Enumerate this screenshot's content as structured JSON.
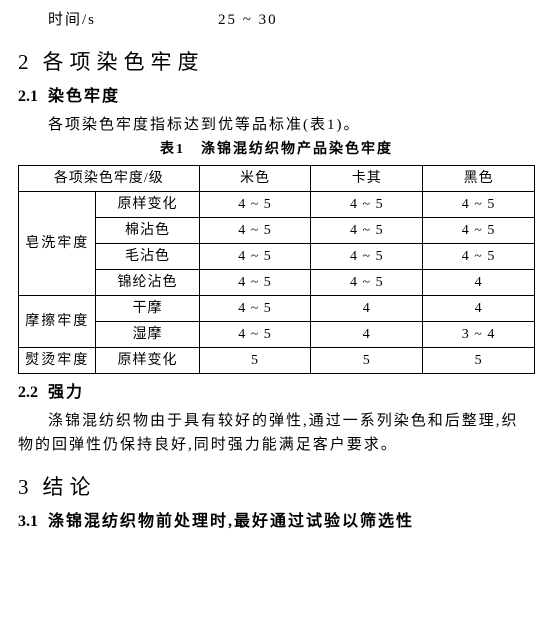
{
  "top": {
    "label": "时间/s",
    "value": "25 ~ 30"
  },
  "sec2": {
    "num": "2",
    "title": "各项染色牢度",
    "s1": {
      "num": "2.1",
      "title": "染色牢度",
      "para": "各项染色牢度指标达到优等品标准(表1)。",
      "caption": "表1　涤锦混纺织物产品染色牢度",
      "table": {
        "head_merge": "各项染色牢度/级",
        "cols": [
          "米色",
          "卡其",
          "黑色"
        ],
        "groups": [
          {
            "name": "皂洗牢度",
            "rows": [
              {
                "label": "原样变化",
                "vals": [
                  "4 ~ 5",
                  "4 ~ 5",
                  "4 ~ 5"
                ]
              },
              {
                "label": "棉沾色",
                "vals": [
                  "4 ~ 5",
                  "4 ~ 5",
                  "4 ~ 5"
                ]
              },
              {
                "label": "毛沾色",
                "vals": [
                  "4 ~ 5",
                  "4 ~ 5",
                  "4 ~ 5"
                ]
              },
              {
                "label": "锦纶沾色",
                "vals": [
                  "4 ~ 5",
                  "4 ~ 5",
                  "4"
                ]
              }
            ]
          },
          {
            "name": "摩擦牢度",
            "rows": [
              {
                "label": "干摩",
                "vals": [
                  "4 ~ 5",
                  "4",
                  "4"
                ]
              },
              {
                "label": "湿摩",
                "vals": [
                  "4 ~ 5",
                  "4",
                  "3 ~ 4"
                ]
              }
            ]
          },
          {
            "name": "熨烫牢度",
            "rows": [
              {
                "label": "原样变化",
                "vals": [
                  "5",
                  "5",
                  "5"
                ]
              }
            ]
          }
        ]
      }
    },
    "s2": {
      "num": "2.2",
      "title": "强力",
      "para": "涤锦混纺织物由于具有较好的弹性,通过一系列染色和后整理,织物的回弹性仍保持良好,同时强力能满足客户要求。"
    }
  },
  "sec3": {
    "num": "3",
    "title": "结论",
    "s1": {
      "num": "3.1",
      "para": "涤锦混纺织物前处理时,最好通过试验以筛选性"
    }
  }
}
